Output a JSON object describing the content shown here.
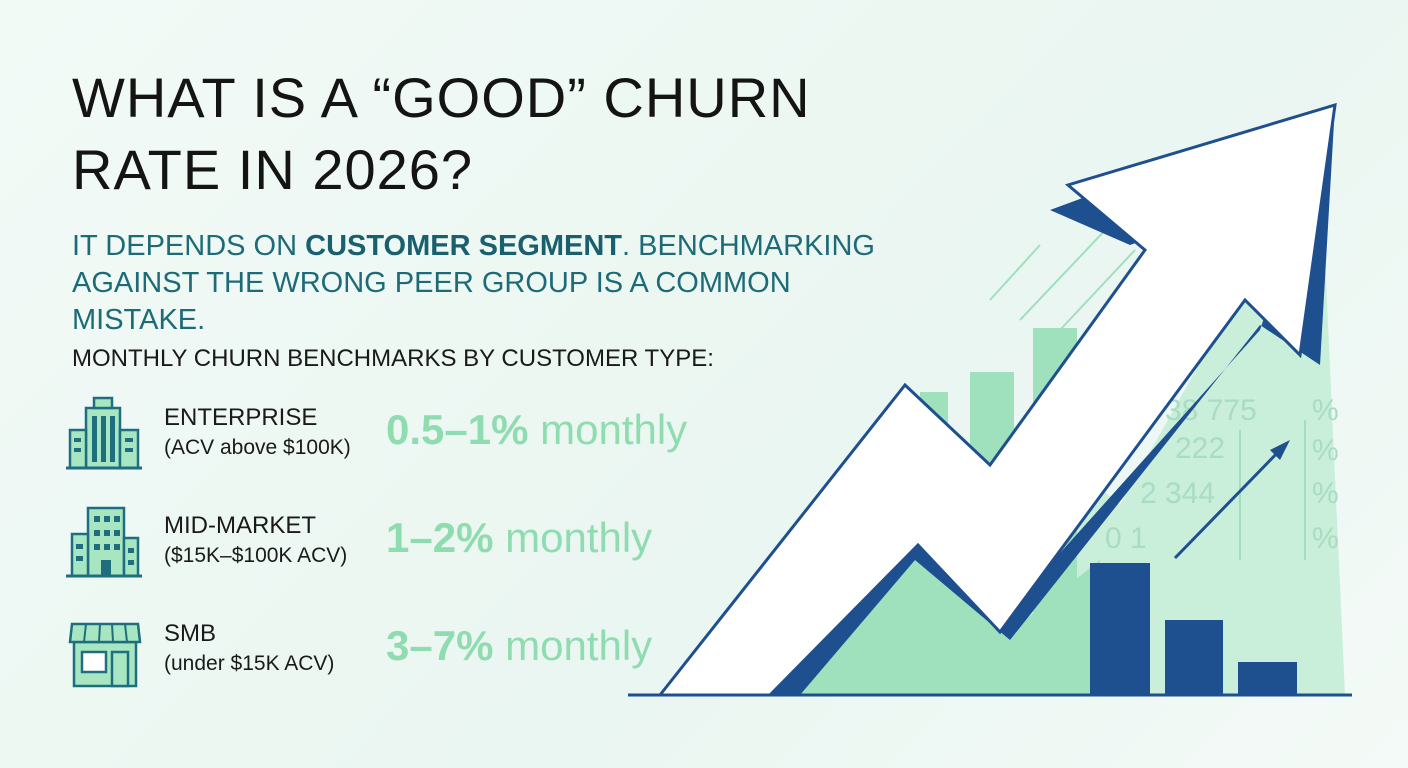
{
  "header": {
    "title_lines": [
      "WHAT IS A “GOOD” CHURN",
      "RATE IN 2026?"
    ],
    "subtitle": {
      "lead": "IT DEPENDS ON ",
      "emphasis": "CUSTOMER SEGMENT",
      "rest": ". BENCHMARKING AGAINST THE WRONG PEER GROUP IS A COMMON MISTAKE."
    }
  },
  "section_heading": "MONTHLY CHURN BENCHMARKS BY CUSTOMER TYPE:",
  "segments": [
    {
      "name": "ENTERPRISE",
      "detail": "(ACV above $100K)",
      "rate": "0.5–1%",
      "unit": "monthly"
    },
    {
      "name": "MID-MARKET",
      "detail": "($15K–$100K ACV)",
      "rate": "1–2%",
      "unit": "monthly"
    },
    {
      "name": "SMB",
      "detail": "(under $15K ACV)",
      "rate": "3–7%",
      "unit": "monthly"
    }
  ],
  "background_figures": [
    "38 775",
    "222",
    "2 344",
    "0 1",
    "%",
    "%",
    "%",
    "%"
  ]
}
